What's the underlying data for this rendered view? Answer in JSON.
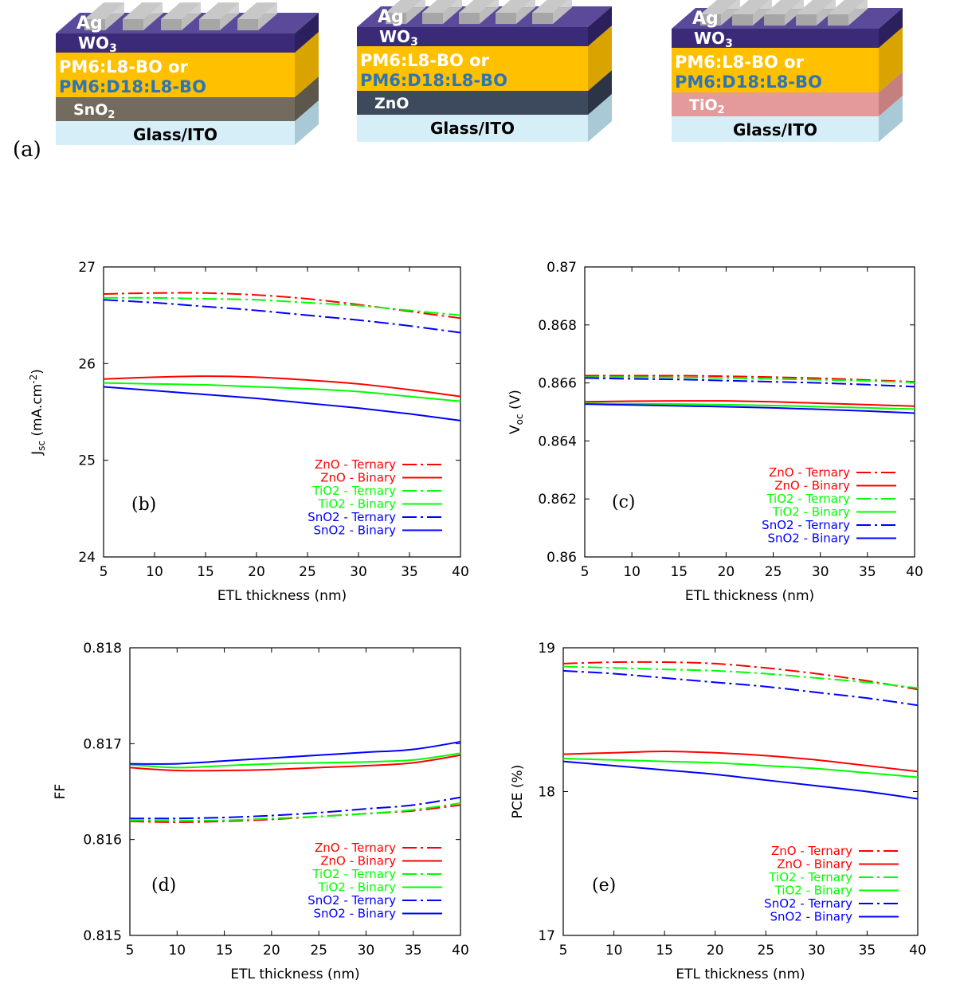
{
  "panel_a": {
    "label": "(a)",
    "devices": [
      {
        "top_contact": "Ag",
        "htl": "WO3",
        "active_1": "PM6:L8-BO or",
        "active_2": "PM6:D18:L8-BO",
        "etl": "SnO2",
        "substrate": "Glass/ITO",
        "etl_color": "#736c5e",
        "etl_side": "#5c564b",
        "etl_text_color": "#ffffff"
      },
      {
        "top_contact": "Ag",
        "htl": "WO3",
        "active_1": "PM6:L8-BO or",
        "active_2": "PM6:D18:L8-BO",
        "etl": "ZnO",
        "substrate": "Glass/ITO",
        "etl_color": "#3d4a5e",
        "etl_side": "#2b3545",
        "etl_text_color": "#ffffff"
      },
      {
        "top_contact": "Ag",
        "htl": "WO3",
        "active_1": "PM6:L8-BO or",
        "active_2": "PM6:D18:L8-BO",
        "etl": "TiO2",
        "substrate": "Glass/ITO",
        "etl_color": "#e49a9a",
        "etl_side": "#c67f7f",
        "etl_text_color": "#ffffff"
      }
    ],
    "colors": {
      "ag": "#a6a6a6",
      "wo3": "#3b2a78",
      "active": "#ffc000",
      "active_text_2": "#2e75b6",
      "glass": "#d6eef8"
    }
  },
  "chart_data": [
    {
      "panel": "(b)",
      "type": "line",
      "xlabel": "ETL thickness (nm)",
      "ylabel": "J_sc (mA.cm^-2)",
      "xlim": [
        5,
        40
      ],
      "ylim": [
        24,
        27
      ],
      "xticks": [
        "5",
        "10",
        "15",
        "20",
        "25",
        "30",
        "35",
        "40"
      ],
      "yticks": [
        "24",
        "25",
        "26",
        "27"
      ],
      "x": [
        5,
        10,
        15,
        20,
        25,
        30,
        35,
        40
      ],
      "series": [
        {
          "name": "ZnO - Ternary",
          "color": "#ff0000",
          "style": "dashdot",
          "values": [
            26.72,
            26.73,
            26.73,
            26.71,
            26.67,
            26.61,
            26.54,
            26.47
          ]
        },
        {
          "name": "ZnO - Binary",
          "color": "#ff0000",
          "style": "solid",
          "values": [
            25.84,
            25.86,
            25.87,
            25.86,
            25.83,
            25.79,
            25.73,
            25.66
          ]
        },
        {
          "name": "TiO2 - Ternary",
          "color": "#00ff00",
          "style": "dashdot",
          "values": [
            26.68,
            26.68,
            26.67,
            26.66,
            26.63,
            26.6,
            26.55,
            26.5
          ]
        },
        {
          "name": "TiO2 - Binary",
          "color": "#00ff00",
          "style": "solid",
          "values": [
            25.8,
            25.79,
            25.78,
            25.76,
            25.74,
            25.71,
            25.66,
            25.61
          ]
        },
        {
          "name": "SnO2 - Ternary",
          "color": "#0000ff",
          "style": "dashdot",
          "values": [
            26.66,
            26.63,
            26.59,
            26.55,
            26.5,
            26.45,
            26.39,
            26.32
          ]
        },
        {
          "name": "SnO2 - Binary",
          "color": "#0000ff",
          "style": "solid",
          "values": [
            25.76,
            25.72,
            25.68,
            25.64,
            25.59,
            25.54,
            25.48,
            25.41
          ]
        }
      ]
    },
    {
      "panel": "(c)",
      "type": "line",
      "xlabel": "ETL thickness (nm)",
      "ylabel": "V_oc (V)",
      "xlim": [
        5,
        40
      ],
      "ylim": [
        0.86,
        0.87
      ],
      "xticks": [
        "5",
        "10",
        "15",
        "20",
        "25",
        "30",
        "35",
        "40"
      ],
      "yticks": [
        "0.86",
        "0.862",
        "0.864",
        "0.866",
        "0.868",
        "0.87"
      ],
      "x": [
        5,
        10,
        15,
        20,
        25,
        30,
        35,
        40
      ],
      "series": [
        {
          "name": "ZnO - Ternary",
          "color": "#ff0000",
          "style": "dashdot",
          "values": [
            0.86625,
            0.86625,
            0.86625,
            0.86623,
            0.8662,
            0.86616,
            0.8661,
            0.86604
          ]
        },
        {
          "name": "ZnO - Binary",
          "color": "#ff0000",
          "style": "solid",
          "values": [
            0.86535,
            0.86537,
            0.86538,
            0.86538,
            0.86535,
            0.8653,
            0.86525,
            0.8652
          ]
        },
        {
          "name": "TiO2 - Ternary",
          "color": "#00ff00",
          "style": "dashdot",
          "values": [
            0.8662,
            0.8662,
            0.86619,
            0.86617,
            0.86614,
            0.86611,
            0.86607,
            0.86602
          ]
        },
        {
          "name": "TiO2 - Binary",
          "color": "#00ff00",
          "style": "solid",
          "values": [
            0.8653,
            0.86528,
            0.86527,
            0.86525,
            0.86522,
            0.86518,
            0.86514,
            0.8651
          ]
        },
        {
          "name": "SnO2 - Ternary",
          "color": "#0000ff",
          "style": "dashdot",
          "values": [
            0.86617,
            0.86614,
            0.86612,
            0.86608,
            0.86604,
            0.866,
            0.86594,
            0.86587
          ]
        },
        {
          "name": "SnO2 - Binary",
          "color": "#0000ff",
          "style": "solid",
          "values": [
            0.86527,
            0.86524,
            0.86521,
            0.86518,
            0.86514,
            0.86509,
            0.86503,
            0.86496
          ]
        }
      ]
    },
    {
      "panel": "(d)",
      "type": "line",
      "xlabel": "ETL thickness (nm)",
      "ylabel": "FF",
      "xlim": [
        5,
        40
      ],
      "ylim": [
        0.815,
        0.818
      ],
      "xticks": [
        "5",
        "10",
        "15",
        "20",
        "25",
        "30",
        "35",
        "40"
      ],
      "yticks": [
        "0.815",
        "0.816",
        "0.817",
        "0.818"
      ],
      "x": [
        5,
        10,
        15,
        20,
        25,
        30,
        35,
        40
      ],
      "series": [
        {
          "name": "ZnO - Ternary",
          "color": "#ff0000",
          "style": "dashdot",
          "values": [
            0.81619,
            0.81618,
            0.81619,
            0.81621,
            0.81624,
            0.81627,
            0.8163,
            0.81636
          ]
        },
        {
          "name": "ZnO - Binary",
          "color": "#ff0000",
          "style": "solid",
          "values": [
            0.81675,
            0.81672,
            0.81672,
            0.81673,
            0.81675,
            0.81677,
            0.8168,
            0.81688
          ]
        },
        {
          "name": "TiO2 - Ternary",
          "color": "#00ff00",
          "style": "dashdot",
          "values": [
            0.8162,
            0.8162,
            0.8162,
            0.81622,
            0.81624,
            0.81627,
            0.81631,
            0.81638
          ]
        },
        {
          "name": "TiO2 - Binary",
          "color": "#00ff00",
          "style": "solid",
          "values": [
            0.81678,
            0.81675,
            0.81677,
            0.81679,
            0.8168,
            0.81681,
            0.81683,
            0.8169
          ]
        },
        {
          "name": "SnO2 - Ternary",
          "color": "#0000ff",
          "style": "dashdot",
          "values": [
            0.81622,
            0.81622,
            0.81623,
            0.81625,
            0.81628,
            0.81632,
            0.81636,
            0.81644
          ]
        },
        {
          "name": "SnO2 - Binary",
          "color": "#0000ff",
          "style": "solid",
          "values": [
            0.81679,
            0.81679,
            0.81682,
            0.81685,
            0.81688,
            0.81691,
            0.81694,
            0.81702
          ]
        }
      ]
    },
    {
      "panel": "(e)",
      "type": "line",
      "xlabel": "ETL thickness (nm)",
      "ylabel": "PCE (%)",
      "xlim": [
        5,
        40
      ],
      "ylim": [
        17,
        19
      ],
      "xticks": [
        "5",
        "10",
        "15",
        "20",
        "25",
        "30",
        "35",
        "40"
      ],
      "yticks": [
        "17",
        "18",
        "19"
      ],
      "x": [
        5,
        10,
        15,
        20,
        25,
        30,
        35,
        40
      ],
      "series": [
        {
          "name": "ZnO - Ternary",
          "color": "#ff0000",
          "style": "dashdot",
          "values": [
            18.89,
            18.9,
            18.9,
            18.89,
            18.86,
            18.82,
            18.77,
            18.71
          ]
        },
        {
          "name": "ZnO - Binary",
          "color": "#ff0000",
          "style": "solid",
          "values": [
            18.26,
            18.27,
            18.28,
            18.27,
            18.25,
            18.22,
            18.18,
            18.14
          ]
        },
        {
          "name": "TiO2 - Ternary",
          "color": "#00ff00",
          "style": "dashdot",
          "values": [
            18.87,
            18.86,
            18.85,
            18.84,
            18.82,
            18.79,
            18.76,
            18.72
          ]
        },
        {
          "name": "TiO2 - Binary",
          "color": "#00ff00",
          "style": "solid",
          "values": [
            18.23,
            18.22,
            18.21,
            18.2,
            18.18,
            18.16,
            18.13,
            18.1
          ]
        },
        {
          "name": "SnO2 - Ternary",
          "color": "#0000ff",
          "style": "dashdot",
          "values": [
            18.84,
            18.82,
            18.79,
            18.76,
            18.73,
            18.69,
            18.65,
            18.6
          ]
        },
        {
          "name": "SnO2 - Binary",
          "color": "#0000ff",
          "style": "solid",
          "values": [
            18.21,
            18.18,
            18.15,
            18.12,
            18.08,
            18.04,
            18.0,
            17.95
          ]
        }
      ]
    }
  ]
}
